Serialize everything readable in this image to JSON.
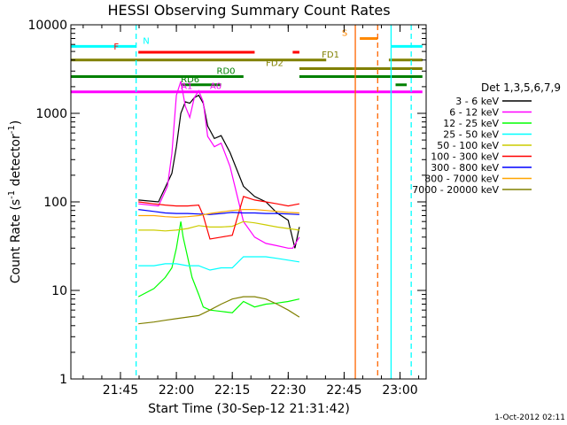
{
  "chart_data": {
    "type": "line",
    "title": "HESSI Observing Summary Count Rates",
    "xlabel": "Start Time (30-Sep-12 21:31:42)",
    "ylabel_main": "Count Rate (s",
    "ylabel_sup": "-1",
    "ylabel_mid": " detector",
    "ylabel_end": ")",
    "x_range_min": [
      21.5283,
      23.1167
    ],
    "y_range": [
      1,
      10000
    ],
    "y_scale": "log",
    "x_ticks": [
      {
        "label": "21:45",
        "hour": 21.75
      },
      {
        "label": "22:00",
        "hour": 22.0
      },
      {
        "label": "22:15",
        "hour": 22.25
      },
      {
        "label": "22:30",
        "hour": 22.5
      },
      {
        "label": "22:45",
        "hour": 22.75
      },
      {
        "label": "23:00",
        "hour": 23.0
      }
    ],
    "y_ticks": [
      {
        "label": "1",
        "value": 1
      },
      {
        "label": "10",
        "value": 10
      },
      {
        "label": "100",
        "value": 100
      },
      {
        "label": "1000",
        "value": 1000
      },
      {
        "label": "10000",
        "value": 10000
      }
    ],
    "legend_title": "Det 1,3,5,6,7,9",
    "legend_placement": "right",
    "timestamp": "1-Oct-2012 02:11",
    "series": [
      {
        "name": "3 - 6 keV",
        "color": "#000000",
        "x": [
          21.83,
          21.92,
          21.98,
          22.0,
          22.02,
          22.04,
          22.06,
          22.08,
          22.1,
          22.12,
          22.14,
          22.17,
          22.2,
          22.24,
          22.3,
          22.35,
          22.4,
          22.45,
          22.5,
          22.52,
          22.53,
          22.55
        ],
        "y": [
          105,
          100,
          210,
          420,
          1000,
          1350,
          1300,
          1500,
          1600,
          1300,
          720,
          520,
          560,
          360,
          150,
          115,
          100,
          75,
          62,
          38,
          30,
          52
        ]
      },
      {
        "name": "6 - 12 keV",
        "color": "#ff00ff",
        "x": [
          21.83,
          21.92,
          21.96,
          21.98,
          22.0,
          22.02,
          22.04,
          22.06,
          22.08,
          22.1,
          22.12,
          22.14,
          22.17,
          22.2,
          22.24,
          22.3,
          22.35,
          22.4,
          22.45,
          22.5,
          22.52,
          22.55
        ],
        "y": [
          95,
          90,
          150,
          350,
          1600,
          2300,
          1200,
          900,
          1500,
          1800,
          1350,
          550,
          420,
          460,
          250,
          60,
          40,
          34,
          32,
          30,
          30,
          40
        ]
      },
      {
        "name": "12 - 25 keV",
        "color": "#00ff00",
        "x": [
          21.83,
          21.9,
          21.95,
          21.98,
          22.0,
          22.02,
          22.03,
          22.05,
          22.07,
          22.1,
          22.12,
          22.15,
          22.2,
          22.25,
          22.3,
          22.35,
          22.4,
          22.45,
          22.5,
          22.55
        ],
        "y": [
          8.5,
          10.5,
          14,
          18,
          30,
          60,
          40,
          24,
          14,
          9,
          6.5,
          6.0,
          5.8,
          5.6,
          7.5,
          6.5,
          7.0,
          7.2,
          7.5,
          8.0
        ]
      },
      {
        "name": "25 - 50 keV",
        "color": "#00ffff",
        "x": [
          21.83,
          21.9,
          21.95,
          22.0,
          22.05,
          22.1,
          22.15,
          22.2,
          22.25,
          22.3,
          22.35,
          22.4,
          22.45,
          22.5,
          22.55
        ],
        "y": [
          19,
          19,
          20,
          20,
          19,
          19,
          17,
          18,
          18,
          24,
          24,
          24,
          23,
          22,
          21
        ]
      },
      {
        "name": "50 - 100 keV",
        "color": "#cccc00",
        "x": [
          21.83,
          21.9,
          21.95,
          22.0,
          22.05,
          22.1,
          22.15,
          22.2,
          22.25,
          22.3,
          22.35,
          22.4,
          22.45,
          22.5,
          22.55
        ],
        "y": [
          48,
          48,
          47,
          48,
          50,
          54,
          52,
          52,
          53,
          60,
          58,
          55,
          52,
          50,
          48
        ]
      },
      {
        "name": "100 - 300 keV",
        "color": "#ff0000",
        "x": [
          21.83,
          21.9,
          21.95,
          22.0,
          22.05,
          22.1,
          22.12,
          22.15,
          22.2,
          22.25,
          22.3,
          22.35,
          22.4,
          22.45,
          22.5,
          22.55
        ],
        "y": [
          100,
          95,
          92,
          90,
          90,
          92,
          70,
          38,
          40,
          42,
          115,
          105,
          100,
          95,
          90,
          95
        ]
      },
      {
        "name": "300 - 800 keV",
        "color": "#0000ff",
        "x": [
          21.83,
          21.9,
          21.95,
          22.0,
          22.05,
          22.1,
          22.15,
          22.2,
          22.25,
          22.3,
          22.35,
          22.4,
          22.45,
          22.5,
          22.55
        ],
        "y": [
          82,
          78,
          75,
          74,
          74,
          73,
          72,
          74,
          76,
          75,
          75,
          74,
          74,
          73,
          72
        ]
      },
      {
        "name": "800 - 7000 keV",
        "color": "#ffa500",
        "x": [
          21.83,
          21.9,
          21.95,
          22.0,
          22.05,
          22.1,
          22.15,
          22.2,
          22.25,
          22.3,
          22.35,
          22.4,
          22.45,
          22.5,
          22.55
        ],
        "y": [
          70,
          70,
          68,
          67,
          68,
          70,
          74,
          77,
          80,
          82,
          82,
          80,
          78,
          76,
          75
        ]
      },
      {
        "name": "7000 - 20000 keV",
        "color": "#808000",
        "x": [
          21.83,
          21.9,
          21.95,
          22.0,
          22.05,
          22.1,
          22.15,
          22.2,
          22.25,
          22.3,
          22.35,
          22.4,
          22.45,
          22.5,
          22.55
        ],
        "y": [
          4.2,
          4.4,
          4.6,
          4.8,
          5.0,
          5.2,
          6.0,
          7.0,
          8.0,
          8.5,
          8.5,
          8.0,
          7.0,
          6.0,
          5.0
        ]
      }
    ],
    "vertical_markers": [
      {
        "hour": 21.82,
        "color": "#00ffff",
        "style": "dashed"
      },
      {
        "hour": 22.8,
        "color": "#ff6600",
        "style": "solid"
      },
      {
        "hour": 22.9,
        "color": "#ff6600",
        "style": "dashed"
      },
      {
        "hour": 22.96,
        "color": "#00ffff",
        "style": "solid"
      },
      {
        "hour": 23.05,
        "color": "#00ffff",
        "style": "dashed"
      }
    ],
    "flag_bars": [
      {
        "label": "N",
        "color": "#00ffff",
        "value": 5700,
        "segments": [
          [
            21.53,
            21.82
          ],
          [
            22.96,
            23.1
          ]
        ],
        "label_hour": 21.85
      },
      {
        "label": "S",
        "color": "#ff8800",
        "value": 7000,
        "segments": [
          [
            22.82,
            22.9
          ]
        ],
        "label_hour": 22.74
      },
      {
        "label": "F",
        "color": "#ff0000",
        "value": 4900,
        "segments": [
          [
            21.83,
            22.35
          ],
          [
            22.52,
            22.55
          ]
        ],
        "label_hour": 21.72
      },
      {
        "label": "FD1",
        "color": "#808000",
        "value": 4000,
        "segments": [
          [
            21.53,
            22.67
          ],
          [
            22.95,
            23.1
          ]
        ],
        "label_hour": 22.65
      },
      {
        "label": "FD2",
        "color": "#808000",
        "value": 3200,
        "segments": [
          [
            22.55,
            23.1
          ]
        ],
        "label_hour": 22.4
      },
      {
        "label": "RD0",
        "color": "#008000",
        "value": 2600,
        "segments": [
          [
            21.53,
            22.3
          ],
          [
            22.55,
            23.1
          ]
        ],
        "label_hour": 22.18
      },
      {
        "label": "RD6",
        "color": "#008000",
        "value": 2100,
        "segments": [
          [
            22.02,
            22.2
          ],
          [
            22.98,
            23.03
          ]
        ],
        "label_hour": 22.02
      },
      {
        "label": "A1",
        "color": "#ff00ff",
        "value": 1750,
        "segments": [
          [
            21.53,
            23.1
          ]
        ],
        "label_hour": 22.02
      },
      {
        "label": "A0",
        "color": "#ff00ff",
        "value": 1750,
        "segments": [],
        "label_hour": 22.15
      }
    ]
  }
}
